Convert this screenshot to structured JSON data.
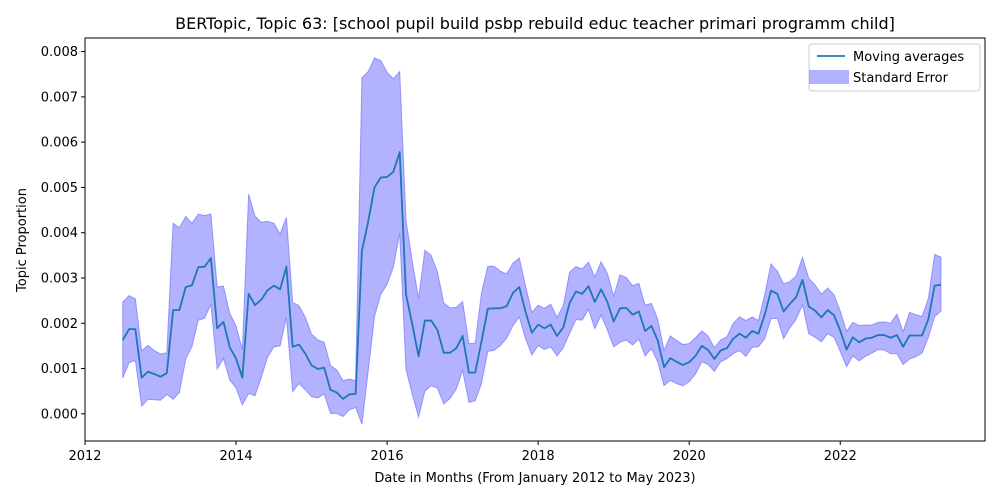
{
  "chart_data": {
    "type": "line",
    "title": "BERTopic, Topic 63: [school pupil build psbp rebuild educ teacher primari programm child]",
    "xlabel": "Date in Months (From January 2012 to May 2023)",
    "ylabel": "Topic Proportion",
    "xlim": [
      "2012-01",
      "2023-12"
    ],
    "ylim": [
      -0.0006,
      0.0083
    ],
    "x_ticks": [
      "2012",
      "2014",
      "2016",
      "2018",
      "2020",
      "2022"
    ],
    "y_ticks": [
      "0.000",
      "0.001",
      "0.002",
      "0.003",
      "0.004",
      "0.005",
      "0.006",
      "0.007",
      "0.008"
    ],
    "grid": false,
    "legend": {
      "placement": "top-right",
      "entries": [
        "Moving averages",
        "Standard Error"
      ]
    },
    "colors": {
      "line": "#1f77b4",
      "band": "#6666ff"
    },
    "series": [
      {
        "name": "Moving averages",
        "x": [
          "2012-07",
          "2012-08",
          "2012-09",
          "2012-10",
          "2012-11",
          "2012-12",
          "2013-01",
          "2013-02",
          "2013-03",
          "2013-04",
          "2013-05",
          "2013-06",
          "2013-07",
          "2013-08",
          "2013-09",
          "2013-10",
          "2013-11",
          "2013-12",
          "2014-01",
          "2014-02",
          "2014-03",
          "2014-04",
          "2014-05",
          "2014-06",
          "2014-07",
          "2014-08",
          "2014-09",
          "2014-10",
          "2014-11",
          "2014-12",
          "2015-01",
          "2015-02",
          "2015-03",
          "2015-04",
          "2015-05",
          "2015-06",
          "2015-07",
          "2015-08",
          "2015-09",
          "2015-10",
          "2015-11",
          "2015-12",
          "2016-01",
          "2016-02",
          "2016-03",
          "2016-04",
          "2016-05",
          "2016-06",
          "2016-07",
          "2016-08",
          "2016-09",
          "2016-10",
          "2016-11",
          "2016-12",
          "2017-01",
          "2017-02",
          "2017-03",
          "2017-04",
          "2017-05",
          "2017-06",
          "2017-07",
          "2017-08",
          "2017-09",
          "2017-10",
          "2017-11",
          "2017-12",
          "2018-01",
          "2018-02",
          "2018-03",
          "2018-04",
          "2018-05",
          "2018-06",
          "2018-07",
          "2018-08",
          "2018-09",
          "2018-10",
          "2018-11",
          "2018-12",
          "2019-01",
          "2019-02",
          "2019-03",
          "2019-04",
          "2019-05",
          "2019-06",
          "2019-07",
          "2019-08",
          "2019-09",
          "2019-10",
          "2019-11",
          "2019-12",
          "2020-01",
          "2020-02",
          "2020-03",
          "2020-04",
          "2020-05",
          "2020-06",
          "2020-07",
          "2020-08",
          "2020-09",
          "2020-10",
          "2020-11",
          "2020-12",
          "2021-01",
          "2021-02",
          "2021-03",
          "2021-04",
          "2021-05",
          "2021-06",
          "2021-07",
          "2021-08",
          "2021-09",
          "2021-10",
          "2021-11",
          "2021-12",
          "2022-01",
          "2022-02",
          "2022-03",
          "2022-04",
          "2022-05",
          "2022-06",
          "2022-07",
          "2022-08",
          "2022-09",
          "2022-10",
          "2022-11",
          "2022-12",
          "2023-01",
          "2023-02",
          "2023-03",
          "2023-04",
          "2023-05"
        ],
        "values": [
          0.00163,
          0.00187,
          0.00187,
          0.0008,
          0.00093,
          0.00088,
          0.00082,
          0.0009,
          0.00229,
          0.00229,
          0.0028,
          0.00284,
          0.00324,
          0.00325,
          0.00344,
          0.00189,
          0.00203,
          0.00147,
          0.00122,
          0.0008,
          0.00265,
          0.0024,
          0.00252,
          0.00273,
          0.00283,
          0.00275,
          0.00325,
          0.00148,
          0.00153,
          0.00133,
          0.00107,
          0.00099,
          0.00102,
          0.00053,
          0.00047,
          0.00033,
          0.00043,
          0.00044,
          0.0036,
          0.00425,
          0.005,
          0.00522,
          0.00523,
          0.00535,
          0.00578,
          0.00264,
          0.00198,
          0.00127,
          0.00206,
          0.00206,
          0.00185,
          0.00135,
          0.00135,
          0.00145,
          0.00172,
          0.00091,
          0.00091,
          0.0016,
          0.00232,
          0.00233,
          0.00233,
          0.00238,
          0.00267,
          0.0028,
          0.00225,
          0.00179,
          0.00197,
          0.00189,
          0.00197,
          0.00172,
          0.00191,
          0.00245,
          0.0027,
          0.00265,
          0.00282,
          0.00247,
          0.00275,
          0.00247,
          0.00204,
          0.00233,
          0.00234,
          0.00219,
          0.00226,
          0.00183,
          0.00194,
          0.00162,
          0.00103,
          0.00123,
          0.00115,
          0.00108,
          0.00114,
          0.00128,
          0.0015,
          0.00141,
          0.00121,
          0.0014,
          0.00145,
          0.00166,
          0.00177,
          0.00168,
          0.00183,
          0.00177,
          0.00219,
          0.00272,
          0.00265,
          0.00226,
          0.00243,
          0.00258,
          0.00296,
          0.00237,
          0.00228,
          0.00213,
          0.00229,
          0.00218,
          0.00184,
          0.00142,
          0.00169,
          0.00158,
          0.00166,
          0.00168,
          0.00174,
          0.00174,
          0.00168,
          0.00174,
          0.00148,
          0.00173,
          0.00173,
          0.00173,
          0.00209,
          0.00283,
          0.00285
        ]
      },
      {
        "name": "Standard Error",
        "upper": [
          0.00247,
          0.00261,
          0.00254,
          0.00139,
          0.00151,
          0.0014,
          0.00132,
          0.00135,
          0.00421,
          0.00411,
          0.00436,
          0.00421,
          0.00441,
          0.00438,
          0.00441,
          0.0028,
          0.00282,
          0.00222,
          0.00194,
          0.00142,
          0.00485,
          0.00437,
          0.00423,
          0.00425,
          0.00421,
          0.00397,
          0.00434,
          0.00246,
          0.00239,
          0.00213,
          0.00176,
          0.00163,
          0.00158,
          0.00107,
          0.00097,
          0.00073,
          0.00077,
          0.00073,
          0.00742,
          0.00756,
          0.00786,
          0.0078,
          0.00754,
          0.0074,
          0.00756,
          0.00428,
          0.00336,
          0.00255,
          0.00361,
          0.0035,
          0.00313,
          0.00245,
          0.00234,
          0.00235,
          0.00248,
          0.00155,
          0.00156,
          0.00267,
          0.00326,
          0.00326,
          0.00315,
          0.00309,
          0.00333,
          0.00344,
          0.00282,
          0.00224,
          0.0024,
          0.00233,
          0.00242,
          0.00213,
          0.00239,
          0.00313,
          0.00325,
          0.0032,
          0.00335,
          0.00302,
          0.00336,
          0.0031,
          0.0026,
          0.00307,
          0.00301,
          0.00283,
          0.00288,
          0.0024,
          0.00244,
          0.00209,
          0.0014,
          0.00172,
          0.00162,
          0.00153,
          0.00155,
          0.00168,
          0.00183,
          0.00172,
          0.00146,
          0.00163,
          0.0017,
          0.002,
          0.00214,
          0.00206,
          0.00214,
          0.00206,
          0.00263,
          0.00331,
          0.00315,
          0.00287,
          0.00292,
          0.00305,
          0.00345,
          0.00299,
          0.00285,
          0.00264,
          0.00278,
          0.00263,
          0.00227,
          0.00182,
          0.00202,
          0.00195,
          0.00196,
          0.00196,
          0.00202,
          0.00203,
          0.002,
          0.0022,
          0.00181,
          0.00224,
          0.00219,
          0.00215,
          0.00255,
          0.00352,
          0.00346
        ],
        "lower": [
          0.00079,
          0.00113,
          0.00118,
          0.00017,
          0.00032,
          0.00031,
          0.0003,
          0.00043,
          0.00032,
          0.00047,
          0.00121,
          0.00149,
          0.00207,
          0.00211,
          0.00242,
          0.00099,
          0.00122,
          0.00075,
          0.00057,
          0.0002,
          0.00045,
          0.0004,
          0.0008,
          0.00125,
          0.00148,
          0.0015,
          0.00213,
          0.00049,
          0.00067,
          0.00053,
          0.00038,
          0.00035,
          0.00044,
          1e-05,
          1e-05,
          -6e-05,
          9e-05,
          0.00014,
          -0.00023,
          0.00095,
          0.00215,
          0.00264,
          0.00286,
          0.00324,
          0.00399,
          0.00098,
          0.00043,
          -7e-05,
          0.0005,
          0.00062,
          0.00057,
          0.00022,
          0.00034,
          0.00055,
          0.00096,
          0.00025,
          0.00029,
          0.00067,
          0.00138,
          0.0014,
          0.00151,
          0.00167,
          0.00195,
          0.00214,
          0.00166,
          0.0013,
          0.00151,
          0.00142,
          0.00148,
          0.00128,
          0.00146,
          0.00178,
          0.00208,
          0.00207,
          0.00231,
          0.00188,
          0.00218,
          0.00185,
          0.00148,
          0.00158,
          0.00163,
          0.00152,
          0.00165,
          0.00128,
          0.00144,
          0.00115,
          0.00062,
          0.00074,
          0.00067,
          0.00062,
          0.00071,
          0.00088,
          0.00115,
          0.00109,
          0.00094,
          0.00115,
          0.00122,
          0.00133,
          0.0014,
          0.00127,
          0.00147,
          0.00148,
          0.00166,
          0.0021,
          0.00211,
          0.00166,
          0.0019,
          0.00209,
          0.00241,
          0.00177,
          0.00169,
          0.00159,
          0.00177,
          0.00169,
          0.00138,
          0.00104,
          0.00128,
          0.00117,
          0.00127,
          0.00134,
          0.00142,
          0.00141,
          0.00133,
          0.00133,
          0.00109,
          0.00121,
          0.00126,
          0.00134,
          0.00169,
          0.00215,
          0.00227
        ]
      }
    ]
  }
}
